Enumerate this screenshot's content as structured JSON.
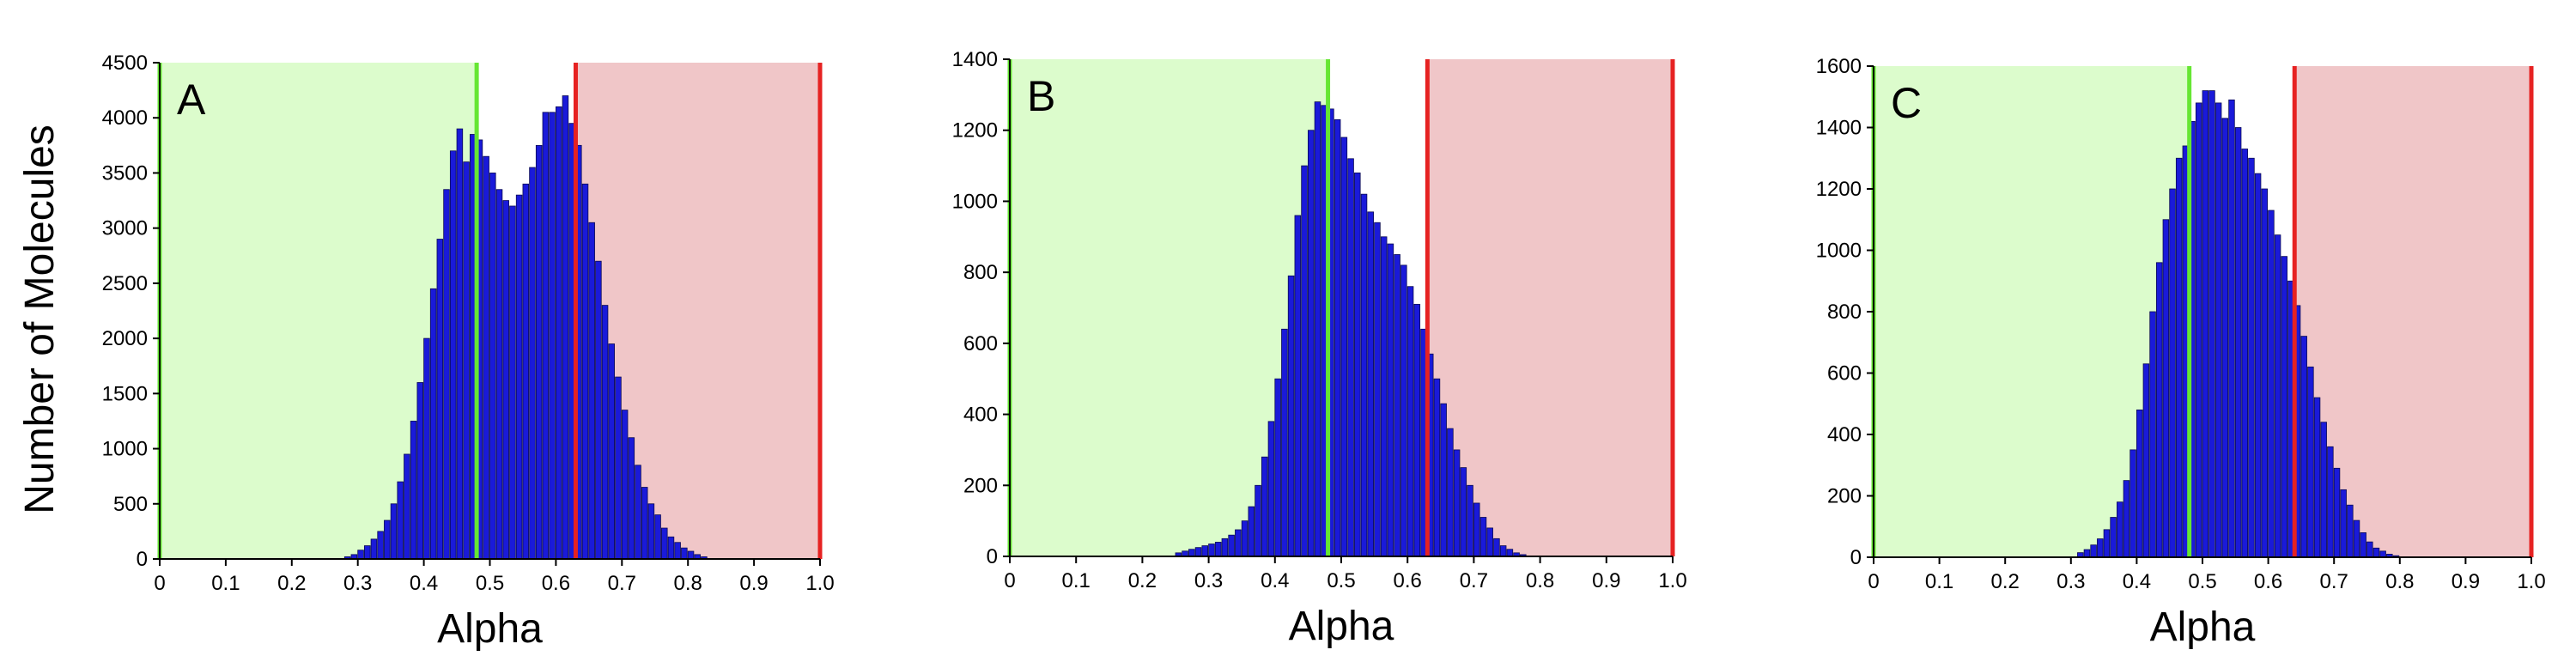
{
  "figure": {
    "ylabel": "Number of Molecules"
  },
  "chart_data": [
    {
      "type": "bar",
      "panel": "A",
      "xlabel": "Alpha",
      "ylabel": "Number of Molecules",
      "xlim": [
        0,
        1.0
      ],
      "ylim": [
        0,
        4500
      ],
      "xticks": [
        "0",
        "0.1",
        "0.2",
        "0.3",
        "0.4",
        "0.5",
        "0.6",
        "0.7",
        "0.8",
        "0.9",
        "1.0"
      ],
      "yticks": [
        0,
        500,
        1000,
        1500,
        2000,
        2500,
        3000,
        3500,
        4000,
        4500
      ],
      "bin_width": 0.01,
      "x_start": 0.28,
      "values": [
        20,
        40,
        80,
        120,
        180,
        250,
        350,
        500,
        700,
        950,
        1250,
        1600,
        2000,
        2450,
        2900,
        3350,
        3700,
        3900,
        3600,
        3850,
        3800,
        3650,
        3500,
        3350,
        3250,
        3200,
        3300,
        3400,
        3550,
        3750,
        4050,
        4050,
        4100,
        4200,
        3950,
        3750,
        3400,
        3050,
        2700,
        2300,
        1950,
        1650,
        1350,
        1100,
        850,
        650,
        500,
        400,
        280,
        200,
        150,
        100,
        70,
        40,
        20
      ],
      "regions": [
        {
          "from": 0.0,
          "to": 0.48,
          "color": "#dcfccc"
        },
        {
          "from": 0.63,
          "to": 1.0,
          "color": "#f0c6c8"
        }
      ],
      "vlines": [
        {
          "x": 0.0,
          "color": "#66e633"
        },
        {
          "x": 0.48,
          "color": "#66e633"
        },
        {
          "x": 0.63,
          "color": "#e62222"
        },
        {
          "x": 1.0,
          "color": "#e62222"
        }
      ]
    },
    {
      "type": "bar",
      "panel": "B",
      "xlabel": "Alpha",
      "ylabel": "",
      "xlim": [
        0,
        1.0
      ],
      "ylim": [
        0,
        1400
      ],
      "xticks": [
        "0",
        "0.1",
        "0.2",
        "0.3",
        "0.4",
        "0.5",
        "0.6",
        "0.7",
        "0.8",
        "0.9",
        "1.0"
      ],
      "yticks": [
        0,
        200,
        400,
        600,
        800,
        1000,
        1200,
        1400
      ],
      "bin_width": 0.01,
      "x_start": 0.25,
      "values": [
        10,
        15,
        20,
        25,
        30,
        35,
        40,
        50,
        60,
        75,
        100,
        140,
        200,
        280,
        380,
        500,
        640,
        790,
        960,
        1100,
        1200,
        1280,
        1270,
        1260,
        1230,
        1180,
        1120,
        1080,
        1020,
        970,
        940,
        900,
        880,
        850,
        820,
        760,
        710,
        640,
        570,
        500,
        430,
        360,
        300,
        250,
        200,
        150,
        110,
        80,
        50,
        30,
        20,
        10,
        5
      ],
      "regions": [
        {
          "from": 0.0,
          "to": 0.48,
          "color": "#dcfccc"
        },
        {
          "from": 0.63,
          "to": 1.0,
          "color": "#f0c6c8"
        }
      ],
      "vlines": [
        {
          "x": 0.0,
          "color": "#66e633"
        },
        {
          "x": 0.48,
          "color": "#66e633"
        },
        {
          "x": 0.63,
          "color": "#e62222"
        },
        {
          "x": 1.0,
          "color": "#e62222"
        }
      ]
    },
    {
      "type": "bar",
      "panel": "C",
      "xlabel": "Alpha",
      "ylabel": "",
      "xlim": [
        0,
        1.0
      ],
      "ylim": [
        0,
        1600
      ],
      "xticks": [
        "0",
        "0.1",
        "0.2",
        "0.3",
        "0.4",
        "0.5",
        "0.6",
        "0.7",
        "0.8",
        "0.9",
        "1.0"
      ],
      "yticks": [
        0,
        200,
        400,
        600,
        800,
        1000,
        1200,
        1400,
        1600
      ],
      "bin_width": 0.01,
      "x_start": 0.31,
      "values": [
        15,
        25,
        40,
        60,
        90,
        130,
        180,
        250,
        350,
        480,
        630,
        800,
        960,
        1100,
        1200,
        1300,
        1340,
        1420,
        1480,
        1520,
        1520,
        1480,
        1430,
        1490,
        1400,
        1330,
        1300,
        1250,
        1200,
        1130,
        1050,
        980,
        900,
        820,
        720,
        620,
        520,
        440,
        360,
        290,
        220,
        170,
        120,
        80,
        50,
        30,
        20,
        10,
        5
      ],
      "regions": [
        {
          "from": 0.0,
          "to": 0.48,
          "color": "#dcfccc"
        },
        {
          "from": 0.64,
          "to": 1.0,
          "color": "#f0c6c8"
        }
      ],
      "vlines": [
        {
          "x": 0.0,
          "color": "#66e633"
        },
        {
          "x": 0.48,
          "color": "#66e633"
        },
        {
          "x": 0.64,
          "color": "#e62222"
        },
        {
          "x": 1.0,
          "color": "#e62222"
        }
      ]
    }
  ],
  "colors": {
    "bar_fill": "#1a1ad9",
    "bar_stroke": "#0a0a55",
    "axis": "#000000"
  }
}
